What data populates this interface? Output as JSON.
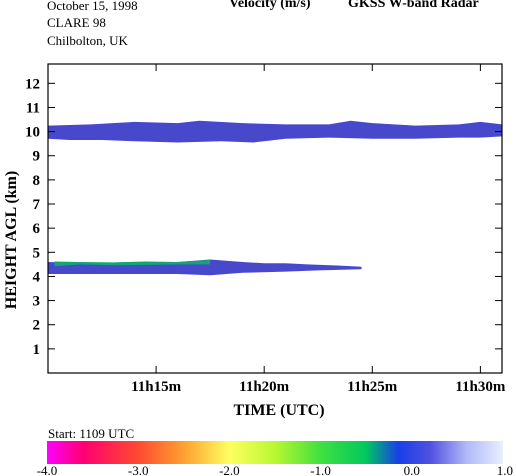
{
  "header": {
    "date": "October  15, 1998",
    "campaign": "CLARE 98",
    "site": "Chilbolton, UK",
    "quantity": "Velocity (m/s)",
    "instrument": "GKSS  W-band Radar"
  },
  "colorbar": {
    "start_label": "Start: 1109 UTC",
    "tick_labels": [
      "-4.0",
      "-3.0",
      "-2.0",
      "-1.0",
      "0.0",
      "1.0"
    ],
    "tick_values": [
      -4.0,
      -3.0,
      -2.0,
      -1.0,
      0.0,
      1.0
    ],
    "range": [
      -4.0,
      1.0
    ],
    "gradient_stops": [
      {
        "v": -4.0,
        "color": "#ff00ff"
      },
      {
        "v": -3.6,
        "color": "#ff0070"
      },
      {
        "v": -3.0,
        "color": "#ff4a30"
      },
      {
        "v": -2.5,
        "color": "#ffa030"
      },
      {
        "v": -2.0,
        "color": "#ffff60"
      },
      {
        "v": -1.5,
        "color": "#b8f830"
      },
      {
        "v": -1.0,
        "color": "#40e040"
      },
      {
        "v": -0.5,
        "color": "#00c860"
      },
      {
        "v": -0.15,
        "color": "#1840e8"
      },
      {
        "v": 0.2,
        "color": "#5050e0"
      },
      {
        "v": 0.6,
        "color": "#b0b8f8"
      },
      {
        "v": 1.0,
        "color": "#e8f0ff"
      }
    ]
  },
  "chart_data": {
    "type": "heatmap",
    "title": "Velocity (m/s)",
    "xlabel": "TIME (UTC)",
    "ylabel": "HEIGHT AGL (km)",
    "x_unit": "minutes after 11h00m",
    "xlim": [
      10.0,
      31.0
    ],
    "ylim": [
      0,
      12.8
    ],
    "xticks": [
      15,
      20,
      25,
      30
    ],
    "xtick_labels": [
      "11h15m",
      "11h20m",
      "11h25m",
      "11h30m"
    ],
    "yticks": [
      1,
      2,
      3,
      4,
      5,
      6,
      7,
      8,
      9,
      10,
      11,
      12
    ],
    "ytick_labels": [
      "1",
      "2",
      "3",
      "4",
      "5",
      "6",
      "7",
      "8",
      "9",
      "10",
      "11",
      "12"
    ],
    "grid": false,
    "regions": [
      {
        "name": "upper-cloud-layer",
        "velocity": 0.2,
        "color": "#4848cc",
        "top": [
          [
            10.0,
            10.25
          ],
          [
            12.0,
            10.3
          ],
          [
            14.0,
            10.4
          ],
          [
            16.0,
            10.35
          ],
          [
            17.0,
            10.45
          ],
          [
            19.0,
            10.35
          ],
          [
            21.0,
            10.3
          ],
          [
            23.0,
            10.3
          ],
          [
            24.0,
            10.45
          ],
          [
            25.0,
            10.35
          ],
          [
            27.0,
            10.25
          ],
          [
            29.0,
            10.3
          ],
          [
            30.0,
            10.4
          ],
          [
            31.0,
            10.3
          ]
        ],
        "bottom": [
          [
            10.0,
            9.7
          ],
          [
            11.0,
            9.65
          ],
          [
            12.5,
            9.65
          ],
          [
            14.0,
            9.6
          ],
          [
            16.0,
            9.55
          ],
          [
            18.0,
            9.6
          ],
          [
            19.5,
            9.55
          ],
          [
            21.0,
            9.7
          ],
          [
            23.0,
            9.75
          ],
          [
            25.0,
            9.7
          ],
          [
            27.0,
            9.7
          ],
          [
            29.0,
            9.75
          ],
          [
            30.0,
            9.75
          ],
          [
            31.0,
            9.8
          ]
        ]
      },
      {
        "name": "lower-cloud-layer",
        "velocity": 0.2,
        "color": "#4848cc",
        "top": [
          [
            10.0,
            4.6
          ],
          [
            12.0,
            4.55
          ],
          [
            14.0,
            4.6
          ],
          [
            16.0,
            4.6
          ],
          [
            17.5,
            4.7
          ],
          [
            19.0,
            4.6
          ],
          [
            20.0,
            4.55
          ],
          [
            21.0,
            4.55
          ],
          [
            22.0,
            4.5
          ],
          [
            23.5,
            4.45
          ],
          [
            24.5,
            4.4
          ]
        ],
        "bottom": [
          [
            10.0,
            4.1
          ],
          [
            12.0,
            4.1
          ],
          [
            14.0,
            4.1
          ],
          [
            16.0,
            4.1
          ],
          [
            17.5,
            4.05
          ],
          [
            19.0,
            4.15
          ],
          [
            21.0,
            4.2
          ],
          [
            22.5,
            4.25
          ],
          [
            24.5,
            4.3
          ]
        ]
      },
      {
        "name": "green-velocity-patch",
        "velocity": -0.6,
        "color": "#10a870",
        "top": [
          [
            10.3,
            4.62
          ],
          [
            11.5,
            4.6
          ],
          [
            13.0,
            4.58
          ],
          [
            14.5,
            4.62
          ],
          [
            16.0,
            4.6
          ],
          [
            17.5,
            4.68
          ]
        ],
        "bottom": [
          [
            10.3,
            4.42
          ],
          [
            11.5,
            4.5
          ],
          [
            13.0,
            4.46
          ],
          [
            14.5,
            4.48
          ],
          [
            16.0,
            4.5
          ],
          [
            17.5,
            4.5
          ]
        ]
      }
    ]
  }
}
